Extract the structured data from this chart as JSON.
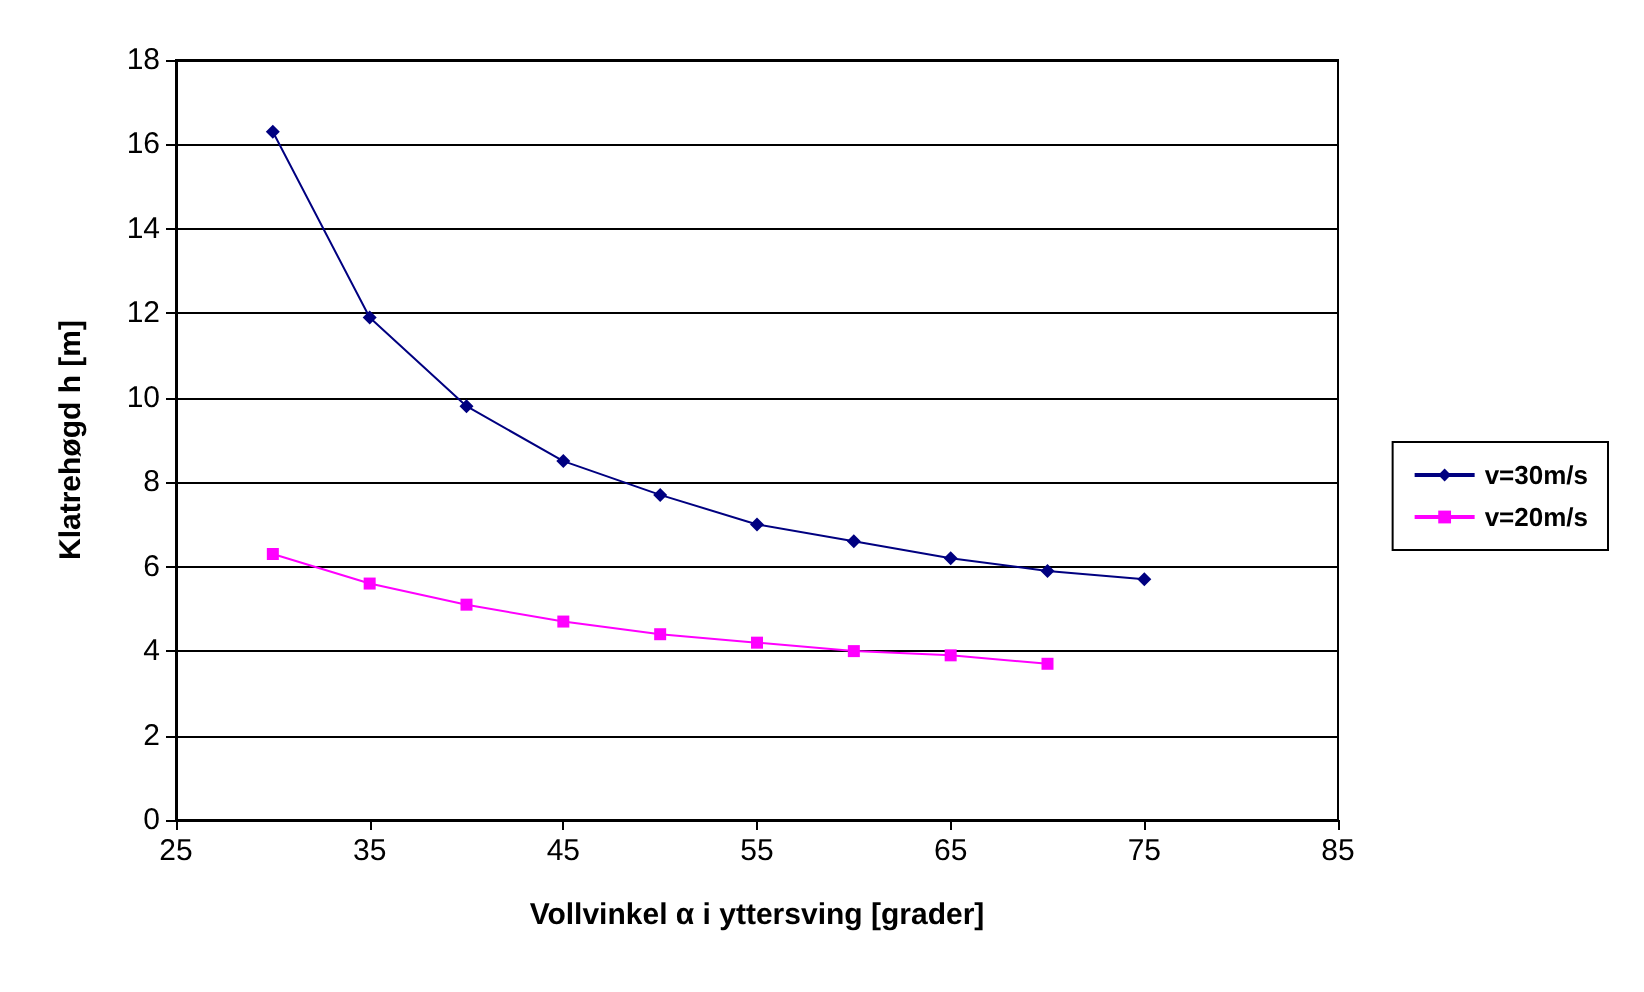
{
  "chart_data": {
    "type": "line",
    "xlabel": "Vollvinkel α i yttersving [grader]",
    "ylabel": "Klatrehøgd h [m]",
    "xlim": [
      25,
      85
    ],
    "xticks": [
      25,
      35,
      45,
      55,
      65,
      75,
      85
    ],
    "ylim": [
      0,
      18
    ],
    "yticks": [
      0,
      2,
      4,
      6,
      8,
      10,
      12,
      14,
      16,
      18
    ],
    "grid": "y",
    "legend": "right",
    "line_style": "solid",
    "series": [
      {
        "name": "v=30m/s",
        "color": "#000080",
        "marker": "diamond",
        "x": [
          30,
          35,
          40,
          45,
          50,
          55,
          60,
          65,
          70,
          75
        ],
        "values": [
          16.3,
          11.9,
          9.8,
          8.5,
          7.7,
          7.0,
          6.6,
          6.2,
          5.9,
          5.7
        ]
      },
      {
        "name": "v=20m/s",
        "color": "#ff00ff",
        "marker": "square",
        "x": [
          30,
          35,
          40,
          45,
          50,
          55,
          60,
          65,
          70
        ],
        "values": [
          6.3,
          5.6,
          5.1,
          4.7,
          4.4,
          4.2,
          4.0,
          3.9,
          3.7
        ]
      }
    ]
  }
}
